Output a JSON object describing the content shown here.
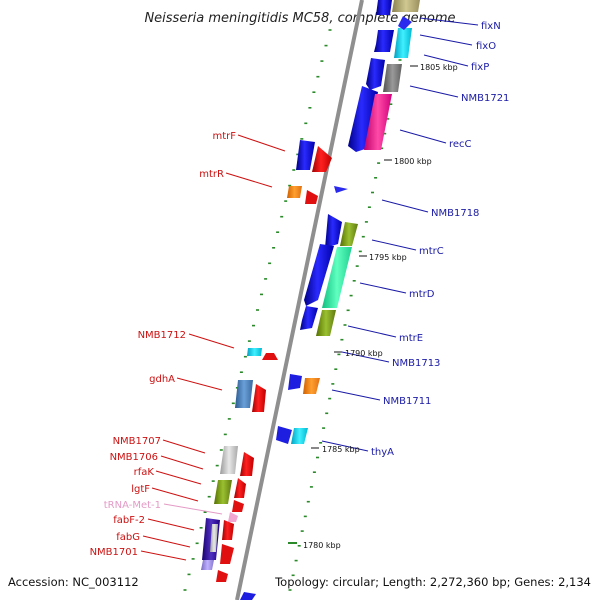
{
  "title": "Neisseria meningitidis MC58, complete genome",
  "footer": {
    "accession": "Accession: NC_003112",
    "topology": "Topology: circular; Length: 2,272,360 bp; Genes: 2,134"
  },
  "colors": {
    "forward": "#1a1aa6",
    "reverse": "#cc1111",
    "trna": "#e49ac6",
    "backbone": "#8f8f8f",
    "tick_dot": "#2a8a2a"
  },
  "scale_labels": [
    "1805 kbp",
    "1800 kbp",
    "1795 kbp",
    "1790 kbp",
    "1785 kbp",
    "1780 kbp"
  ],
  "genes_forward": [
    "fixN",
    "fixO",
    "fixP",
    "NMB1721",
    "recC",
    "NMB1718",
    "mtrC",
    "mtrD",
    "mtrE",
    "NMB1713",
    "NMB1711",
    "thyA"
  ],
  "genes_reverse": [
    "mtrF",
    "mtrR",
    "NMB1712",
    "gdhA",
    "NMB1707",
    "NMB1706",
    "rfaK",
    "lgtF",
    "tRNA-Met-1",
    "fabF-2",
    "fabG",
    "NMB1701"
  ]
}
